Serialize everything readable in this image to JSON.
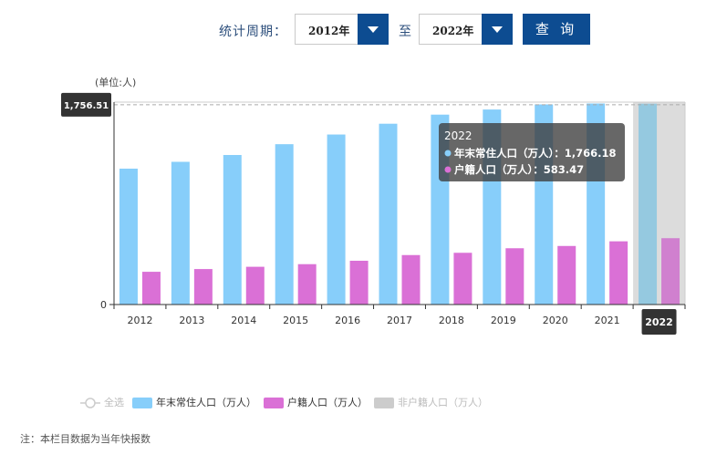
{
  "filter": {
    "period_label": "统计周期：",
    "start_year": "2012年",
    "to_label": "至",
    "end_year": "2022年",
    "query_label": "查 询"
  },
  "unit_label": "(单位:人)",
  "legend": {
    "select_all": "全选",
    "items": [
      {
        "label": "年末常住人口（万人）",
        "color": "#87cefa"
      },
      {
        "label": "户籍人口（万人）",
        "color": "#da70d6"
      },
      {
        "label": "非户籍人口（万人）",
        "color": "#cccccc"
      }
    ]
  },
  "note": "注：本栏目数据为当年快报数",
  "chart_data": {
    "type": "bar",
    "categories": [
      "2012",
      "2013",
      "2014",
      "2015",
      "2016",
      "2017",
      "2018",
      "2019",
      "2020",
      "2021",
      "2022"
    ],
    "series": [
      {
        "name": "年末常住人口（万人）",
        "color": "#87cefa",
        "values": [
          1195,
          1255,
          1315,
          1410,
          1495,
          1590,
          1670,
          1715,
          1760,
          1768,
          1766.18
        ]
      },
      {
        "name": "户籍人口（万人）",
        "color": "#da70d6",
        "values": [
          288,
          312,
          332,
          355,
          385,
          435,
          455,
          495,
          515,
          556,
          583.47
        ]
      }
    ],
    "ylim": [
      0,
      1780
    ],
    "y_ticks": [
      "0"
    ],
    "axis_pointer_value": "1,756.51",
    "highlighted_category": "2022",
    "tooltip": {
      "title": "2022",
      "lines": [
        "年末常住人口（万人）：1,766.18",
        "户籍人口（万人）：583.47"
      ]
    }
  }
}
